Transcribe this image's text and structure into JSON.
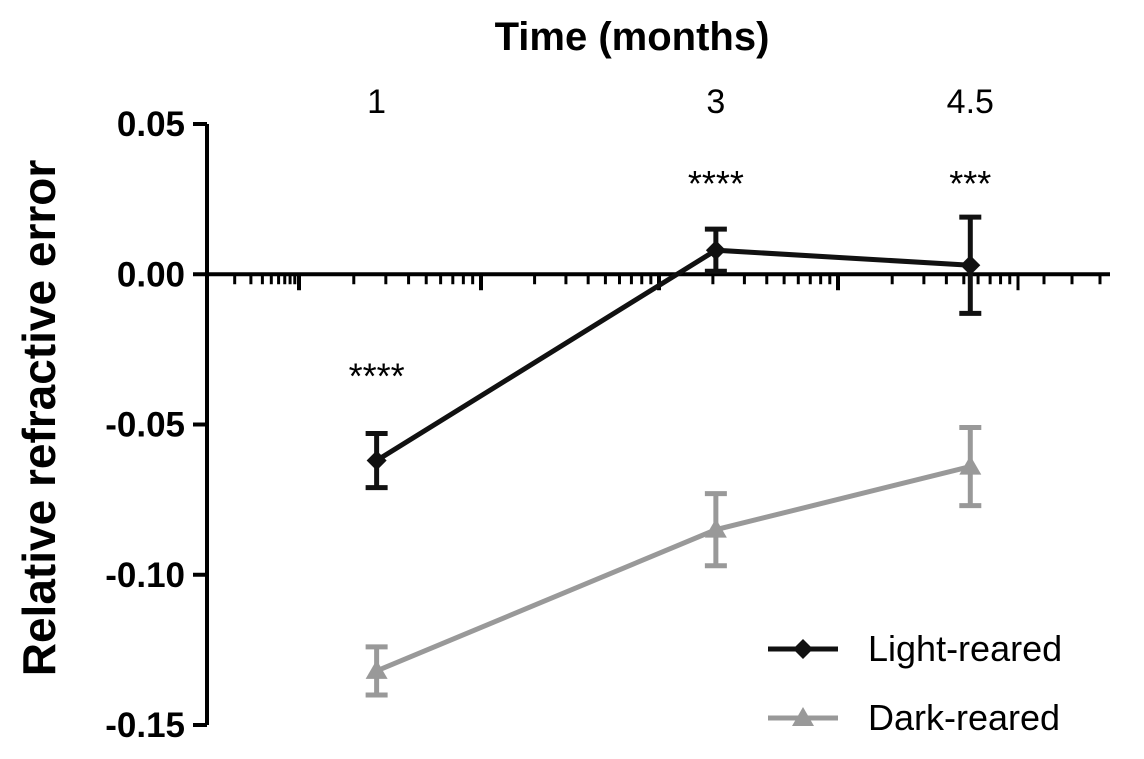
{
  "chart_data": {
    "type": "line",
    "title": "Time (months)",
    "ylabel": "Relative refractive error",
    "x_ticks": [
      "1",
      "3",
      "4.5"
    ],
    "x_values": [
      1,
      3,
      4.5
    ],
    "xlim": [
      0,
      5.3
    ],
    "ylim": [
      -0.15,
      0.05
    ],
    "y_ticks": [
      "0.05",
      "0.00",
      "-0.05",
      "-0.10",
      "-0.15"
    ],
    "y_tick_values": [
      0.05,
      0.0,
      -0.05,
      -0.1,
      -0.15
    ],
    "x_axis_at": 0.0,
    "legend_position": "bottom-right",
    "series": [
      {
        "name": "Light-reared",
        "color": "#111111",
        "marker": "diamond",
        "x": [
          1,
          3,
          4.5
        ],
        "values": [
          -0.062,
          0.008,
          0.003
        ],
        "errors": [
          0.009,
          0.007,
          0.016
        ]
      },
      {
        "name": "Dark-reared",
        "color": "#999999",
        "marker": "triangle",
        "x": [
          1,
          3,
          4.5
        ],
        "values": [
          -0.132,
          -0.085,
          -0.064
        ],
        "errors": [
          0.008,
          0.012,
          0.013
        ]
      }
    ],
    "annotations": [
      {
        "x": 1,
        "y": -0.034,
        "text": "****"
      },
      {
        "x": 3,
        "y": 0.03,
        "text": "****"
      },
      {
        "x": 4.5,
        "y": 0.03,
        "text": "***"
      }
    ]
  }
}
